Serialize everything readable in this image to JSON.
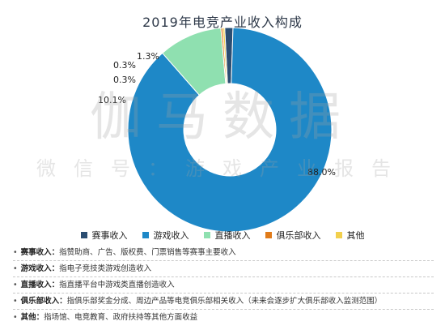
{
  "chart_data": {
    "type": "pie",
    "title": "2019年电竞产业收入构成",
    "style": "donut",
    "unit": "%",
    "slices": [
      {
        "name": "赛事收入",
        "value": 1.3,
        "label": "1.3%",
        "color": "#2b4e72"
      },
      {
        "name": "游戏收入",
        "value": 88.0,
        "label": "88.0%",
        "color": "#1e88c7"
      },
      {
        "name": "直播收入",
        "value": 10.1,
        "label": "10.1%",
        "color": "#8fe0b0"
      },
      {
        "name": "俱乐部收入",
        "value": 0.3,
        "label": "0.3%",
        "color": "#e07b1a"
      },
      {
        "name": "其他",
        "value": 0.3,
        "label": "0.3%",
        "color": "#f2d04d"
      }
    ],
    "legend_position": "bottom"
  },
  "watermark": {
    "line1": "伽马数据",
    "line2": "微信号：游戏产业报告"
  },
  "notes": [
    {
      "label": "赛事收入：",
      "text": "指赞助商、广告、版权费、门票销售等赛事主要收入"
    },
    {
      "label": "游戏收入：",
      "text": "指电子竞技类游戏创造收入"
    },
    {
      "label": "直播收入：",
      "text": "指直播平台中游戏类直播创造收入"
    },
    {
      "label": "俱乐部收入：",
      "text": "指俱乐部奖金分成、周边产品等电竞俱乐部相关收入（未来会逐步扩大俱乐部收入监测范围）"
    },
    {
      "label": "其他：",
      "text": "指场馆、电竞教育、政府扶持等其他方面收益"
    }
  ]
}
